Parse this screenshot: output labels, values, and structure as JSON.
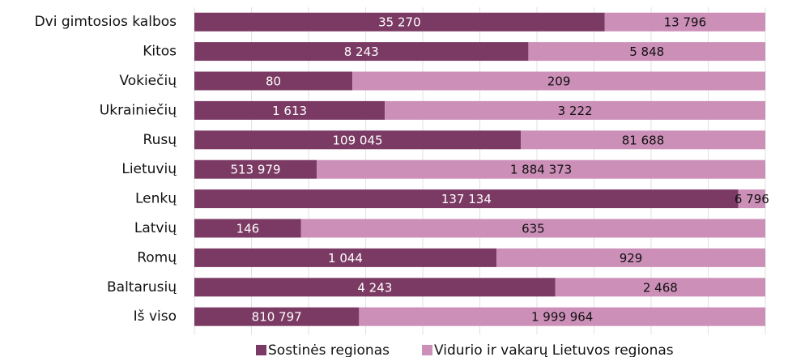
{
  "chart_data": {
    "type": "stacked-bar-100",
    "categories": [
      "Dvi gimtosios kalbos",
      "Kitos",
      "Vokiečių",
      "Ukrainiečių",
      "Rusų",
      "Lietuvių",
      "Lenkų",
      "Latvių",
      "Romų",
      "Baltarusių",
      "Iš viso"
    ],
    "series": [
      {
        "name": "Sostinės regionas",
        "color": "#7b3a63",
        "values": [
          35270,
          8243,
          80,
          1613,
          109045,
          513979,
          137134,
          146,
          1044,
          4243,
          810797
        ],
        "value_labels": [
          "35 270",
          "8 243",
          "80",
          "1 613",
          "109 045",
          "513 979",
          "137 134",
          "146",
          "1 044",
          "4 243",
          "810 797"
        ]
      },
      {
        "name": "Vidurio ir vakarų Lietuvos regionas",
        "color": "#cc8fb8",
        "values": [
          13796,
          5848,
          209,
          3222,
          81688,
          1884373,
          6796,
          635,
          929,
          2468,
          1999964
        ],
        "value_labels": [
          "13 796",
          "5 848",
          "209",
          "3 222",
          "81 688",
          "1 884 373",
          "6 796",
          "635",
          "929",
          "2 468",
          "1 999 964"
        ]
      }
    ],
    "grid": true
  }
}
